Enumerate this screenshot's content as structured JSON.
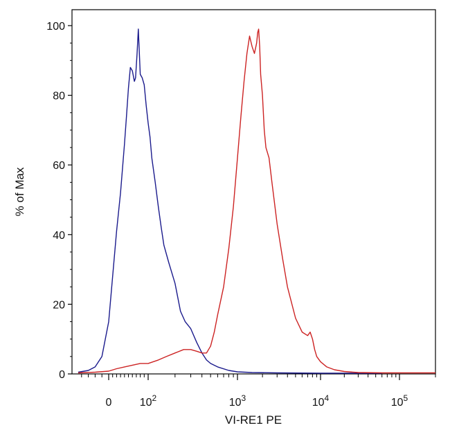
{
  "chart_data": {
    "type": "line",
    "title": "",
    "xlabel": "VI-RE1 PE",
    "ylabel": "% of Max",
    "x_scale": "biexponential",
    "xlim": [
      -50,
      200000
    ],
    "ylim": [
      0,
      105
    ],
    "grid": false,
    "legend": "none",
    "y_ticks": [
      0,
      20,
      40,
      60,
      80,
      100
    ],
    "x_ticks": [
      {
        "value": 0,
        "base": "0",
        "exp": ""
      },
      {
        "value": 100,
        "base": "10",
        "exp": "2"
      },
      {
        "value": 1000,
        "base": "10",
        "exp": "3"
      },
      {
        "value": 10000,
        "base": "10",
        "exp": "4"
      },
      {
        "value": 100000,
        "base": "10",
        "exp": "5"
      }
    ],
    "series": [
      {
        "color": "#1a1a8c",
        "x": [
          -45,
          -30,
          -20,
          -10,
          0,
          10,
          20,
          30,
          40,
          45,
          50,
          55,
          60,
          65,
          68,
          72,
          75,
          80,
          85,
          90,
          95,
          100,
          105,
          110,
          120,
          130,
          140,
          150,
          170,
          200,
          230,
          260,
          300,
          350,
          400,
          450,
          500,
          600,
          800,
          1000,
          1500,
          3000,
          10000,
          60000
        ],
        "y": [
          0.5,
          1,
          2,
          5,
          15,
          28,
          41,
          52,
          66,
          74,
          82,
          88,
          87,
          84,
          85,
          92,
          99,
          86,
          85,
          83,
          77,
          72,
          68,
          62,
          55,
          48,
          42,
          37,
          32,
          26,
          18,
          15,
          13,
          9,
          6,
          4,
          3,
          2,
          1,
          0.6,
          0.4,
          0.3,
          0.2,
          0.2
        ]
      },
      {
        "color": "#cc2222",
        "x": [
          -45,
          -20,
          0,
          20,
          40,
          60,
          80,
          100,
          130,
          160,
          200,
          250,
          300,
          350,
          400,
          450,
          500,
          550,
          600,
          700,
          800,
          900,
          1000,
          1100,
          1200,
          1300,
          1400,
          1500,
          1600,
          1700,
          1750,
          1800,
          1850,
          1900,
          2000,
          2100,
          2200,
          2400,
          2600,
          3000,
          3500,
          4000,
          5000,
          6000,
          7000,
          7500,
          8000,
          8500,
          9000,
          10000,
          12000,
          15000,
          20000,
          30000,
          60000,
          200000
        ],
        "y": [
          0.3,
          0.5,
          0.8,
          1.5,
          2,
          2.5,
          3,
          3,
          4,
          5,
          6,
          7,
          7,
          6.5,
          6,
          6,
          8,
          12,
          17,
          25,
          36,
          48,
          62,
          74,
          84,
          92,
          97,
          94,
          92,
          95,
          98,
          99,
          94,
          86,
          80,
          70,
          65,
          62,
          55,
          43,
          33,
          25,
          16,
          12,
          11,
          12,
          10,
          7,
          5,
          3.5,
          2,
          1.2,
          0.7,
          0.4,
          0.3,
          0.3
        ]
      }
    ]
  }
}
